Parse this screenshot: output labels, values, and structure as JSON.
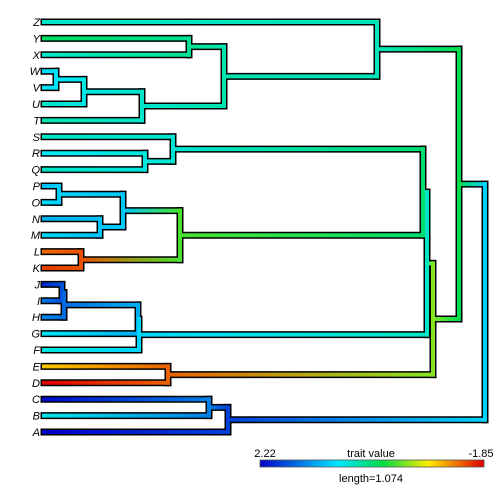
{
  "tree": {
    "tips": [
      {
        "label": "Z",
        "trait": 0.55
      },
      {
        "label": "Y",
        "trait": 0.1
      },
      {
        "label": "X",
        "trait": 0.55
      },
      {
        "label": "W",
        "trait": 0.9
      },
      {
        "label": "V",
        "trait": 0.75
      },
      {
        "label": "U",
        "trait": 0.55
      },
      {
        "label": "T",
        "trait": 0.45
      },
      {
        "label": "S",
        "trait": 0.55
      },
      {
        "label": "R",
        "trait": 0.75
      },
      {
        "label": "Q",
        "trait": 0.55
      },
      {
        "label": "P",
        "trait": 1.05
      },
      {
        "label": "O",
        "trait": 0.85
      },
      {
        "label": "N",
        "trait": 1.15
      },
      {
        "label": "M",
        "trait": 0.9
      },
      {
        "label": "L",
        "trait": -1.4
      },
      {
        "label": "K",
        "trait": -1.6
      },
      {
        "label": "J",
        "trait": 1.95
      },
      {
        "label": "I",
        "trait": 1.5
      },
      {
        "label": "H",
        "trait": 1.4
      },
      {
        "label": "G",
        "trait": 0.75
      },
      {
        "label": "F",
        "trait": 0.65
      },
      {
        "label": "E",
        "trait": -1.0
      },
      {
        "label": "D",
        "trait": -1.85
      },
      {
        "label": "C",
        "trait": 2.15
      },
      {
        "label": "B",
        "trait": 0.7
      },
      {
        "label": "A",
        "trait": 2.22
      }
    ]
  },
  "legend": {
    "max_label": "2.22",
    "title": "trait value",
    "min_label": "-1.85",
    "length_label": "length=1.074",
    "max_value": 2.22,
    "min_value": -1.85
  }
}
